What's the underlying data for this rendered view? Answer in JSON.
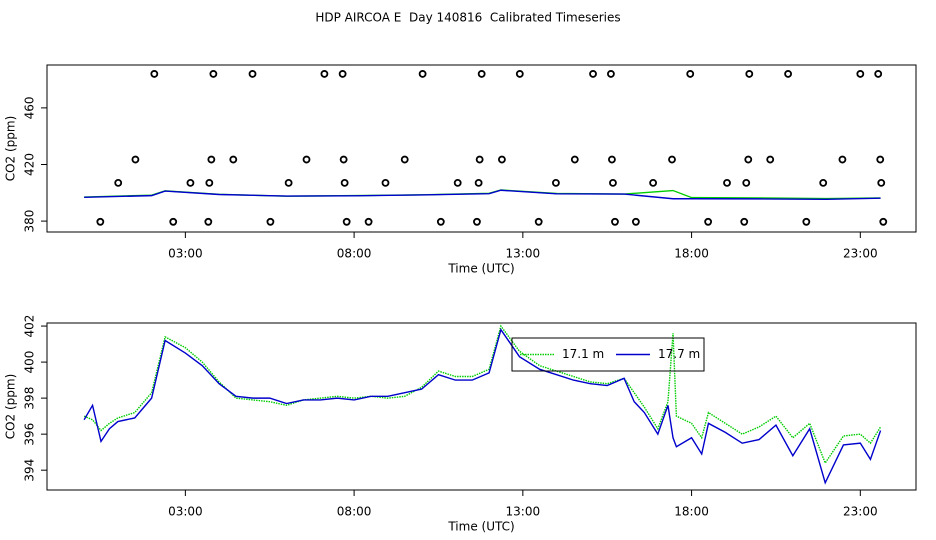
{
  "title": "HDP AIRCOA E  Day 140816  Calibrated Timeseries",
  "chart_data": [
    {
      "type": "line",
      "xlabel": "Time (UTC)",
      "ylabel": "CO2 (ppm)",
      "xlim": [
        -1.1,
        24.65
      ],
      "ylim": [
        372.3,
        490.3
      ],
      "xticks": [
        {
          "value": 3,
          "label": "03:00"
        },
        {
          "value": 8,
          "label": "08:00"
        },
        {
          "value": 13,
          "label": "13:00"
        },
        {
          "value": 18,
          "label": "18:00"
        },
        {
          "value": 23,
          "label": "23:00"
        }
      ],
      "yticks": [
        380,
        420,
        460
      ],
      "series": [
        {
          "color": "#00cc00",
          "x": [
            0,
            2,
            2.4,
            4,
            6,
            8,
            10,
            12,
            12.35,
            14,
            16,
            17.45,
            18,
            20,
            22,
            23.6
          ],
          "values": [
            397.0,
            398.3,
            401.4,
            398.9,
            397.6,
            398.0,
            398.6,
            399.6,
            402.0,
            399.5,
            399.1,
            401.6,
            396.6,
            396.4,
            395.9,
            396.4
          ]
        },
        {
          "color": "#0000cc",
          "x": [
            0,
            2,
            2.4,
            4,
            6,
            8,
            10,
            12,
            12.35,
            14,
            16,
            17.45,
            18,
            20,
            22,
            23.6
          ],
          "values": [
            396.8,
            398.0,
            401.2,
            398.8,
            397.7,
            397.9,
            398.5,
            399.4,
            401.8,
            399.3,
            399.1,
            395.8,
            395.8,
            395.7,
            395.4,
            396.2
          ]
        }
      ],
      "points": {
        "color": "#000000",
        "x": [
          2.08,
          3.83,
          4.99,
          7.12,
          7.66,
          10.03,
          11.78,
          12.91,
          15.08,
          15.61,
          17.96,
          19.71,
          20.86,
          23.0,
          23.53,
          1.52,
          3.77,
          4.42,
          6.59,
          7.69,
          9.5,
          11.72,
          12.38,
          14.54,
          15.64,
          17.42,
          19.68,
          20.33,
          22.47,
          23.59,
          1.01,
          3.15,
          3.71,
          6.06,
          7.72,
          8.93,
          11.07,
          11.69,
          13.98,
          15.67,
          16.86,
          19.05,
          19.62,
          21.9,
          23.62,
          0.48,
          2.64,
          3.68,
          5.52,
          7.78,
          8.43,
          10.57,
          11.64,
          13.47,
          15.73,
          16.35,
          18.49,
          19.56,
          21.4,
          23.68
        ],
        "values": [
          484,
          484,
          484,
          484,
          484,
          484,
          484,
          484,
          484,
          484,
          484,
          484,
          484,
          484,
          484,
          423.5,
          423.5,
          423.5,
          423.5,
          423.5,
          423.5,
          423.5,
          423.5,
          423.5,
          423.5,
          423.5,
          423.5,
          423.5,
          423.5,
          423.5,
          407,
          407,
          407,
          407,
          407,
          407,
          407,
          407,
          407,
          407,
          407,
          407,
          407,
          407,
          407,
          379.5,
          379.5,
          379.5,
          379.5,
          379.5,
          379.5,
          379.5,
          379.5,
          379.5,
          379.5,
          379.5,
          379.5,
          379.5,
          379.5,
          379.5
        ]
      }
    },
    {
      "type": "line",
      "xlabel": "Time (UTC)",
      "ylabel": "CO2 (ppm)",
      "xlim": [
        -1.1,
        24.65
      ],
      "ylim": [
        392.9,
        402.17
      ],
      "xticks": [
        {
          "value": 3,
          "label": "03:00"
        },
        {
          "value": 8,
          "label": "08:00"
        },
        {
          "value": 13,
          "label": "13:00"
        },
        {
          "value": 18,
          "label": "18:00"
        },
        {
          "value": 23,
          "label": "23:00"
        }
      ],
      "yticks": [
        394,
        396,
        398,
        400,
        402
      ],
      "legend": "top-right",
      "x": [
        0,
        0.25,
        0.5,
        0.75,
        1,
        1.5,
        2,
        2.4,
        3,
        3.5,
        4,
        4.5,
        5,
        5.5,
        6,
        6.5,
        7,
        7.5,
        8,
        8.5,
        9,
        9.5,
        10,
        10.5,
        11,
        11.5,
        12,
        12.35,
        12.9,
        13.5,
        14,
        14.5,
        15,
        15.5,
        16,
        16.3,
        16.6,
        17,
        17.3,
        17.45,
        17.55,
        18,
        18.3,
        18.5,
        19,
        19.5,
        20,
        20.5,
        21,
        21.5,
        21.96,
        22.5,
        23,
        23.3,
        23.6
      ],
      "series": [
        {
          "name": "17.1 m",
          "color": "#00cc00",
          "linestyle": "dotted",
          "values": [
            397.0,
            396.8,
            396.2,
            396.6,
            396.9,
            397.2,
            398.3,
            401.4,
            400.8,
            400.0,
            398.9,
            398.0,
            397.9,
            397.8,
            397.6,
            397.9,
            398.0,
            398.1,
            398.0,
            398.1,
            398.0,
            398.1,
            398.6,
            399.5,
            399.2,
            399.2,
            399.6,
            402.0,
            400.6,
            399.8,
            399.5,
            399.2,
            398.9,
            398.8,
            399.1,
            398.3,
            397.5,
            396.3,
            397.8,
            401.6,
            397.0,
            396.6,
            395.8,
            397.2,
            396.6,
            396.0,
            396.4,
            397.0,
            395.8,
            396.6,
            394.4,
            395.9,
            396.0,
            395.5,
            396.4
          ]
        },
        {
          "name": "17.7 m",
          "color": "#0000cc",
          "linestyle": "solid",
          "values": [
            396.8,
            397.6,
            395.6,
            396.3,
            396.7,
            396.9,
            398.0,
            401.2,
            400.5,
            399.8,
            398.8,
            398.1,
            398.0,
            398.0,
            397.7,
            397.9,
            397.9,
            398.0,
            397.9,
            398.1,
            398.1,
            398.3,
            398.5,
            399.3,
            399.0,
            399.0,
            399.4,
            401.8,
            400.3,
            399.6,
            399.3,
            399.0,
            398.8,
            398.7,
            399.1,
            397.8,
            397.2,
            396.0,
            397.6,
            395.8,
            395.3,
            395.8,
            394.9,
            396.6,
            396.1,
            395.5,
            395.7,
            396.5,
            394.8,
            396.3,
            393.3,
            395.4,
            395.5,
            394.6,
            396.2
          ]
        }
      ]
    }
  ]
}
